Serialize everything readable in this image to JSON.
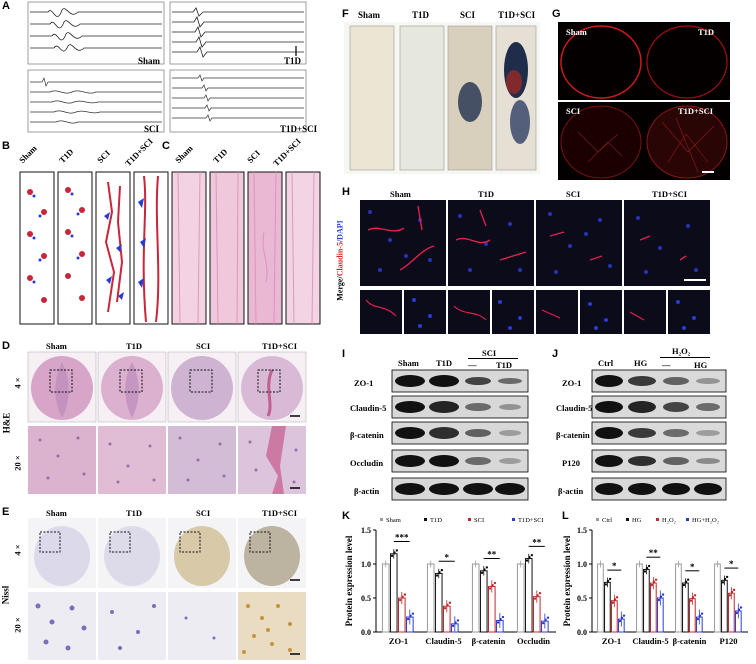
{
  "panels": {
    "A": {
      "letter": "A",
      "tl": "Sham",
      "tr": "T1D",
      "bl": "SCI",
      "br": "T1D+SCI"
    },
    "B": {
      "letter": "B",
      "labels": [
        "Sham",
        "T1D",
        "SCI",
        "T1D+SCI"
      ]
    },
    "C": {
      "letter": "C",
      "labels": [
        "Sham",
        "T1D",
        "SCI",
        "T1D+SCI"
      ]
    },
    "D": {
      "letter": "D",
      "labels": [
        "Sham",
        "T1D",
        "SCI",
        "T1D+SCI"
      ],
      "stain": "H&E",
      "mag4": "4 ×",
      "mag20": "20 ×"
    },
    "E": {
      "letter": "E",
      "labels": [
        "Sham",
        "T1D",
        "SCI",
        "T1D+SCI"
      ],
      "stain": "Nissl",
      "mag4": "4 ×",
      "mag20": "20 ×"
    },
    "F": {
      "letter": "F",
      "labels": [
        "Sham",
        "T1D",
        "SCI",
        "T1D+SCI"
      ]
    },
    "G": {
      "letter": "G",
      "labels": [
        "Sham",
        "T1D",
        "SCI",
        "T1D+SCI"
      ]
    },
    "H": {
      "letter": "H",
      "labels": [
        "Sham",
        "T1D",
        "SCI",
        "T1D+SCI"
      ],
      "ylabel_merge": "Merge/",
      "ylabel_claudin": "Claudin-5",
      "ylabel_dapi": "/DAPI"
    },
    "I": {
      "letter": "I",
      "cols": [
        "Sham",
        "T1D"
      ],
      "group": "SCI",
      "sub": [
        "—",
        "T1D"
      ],
      "rows": [
        "ZO-1",
        "Claudin-5",
        "β-catenin",
        "Occludin",
        "β-actin"
      ]
    },
    "J": {
      "letter": "J",
      "cols": [
        "Ctrl",
        "HG"
      ],
      "group": "H₂O₂",
      "sub": [
        "—",
        "HG"
      ],
      "rows": [
        "ZO-1",
        "Claudin-5",
        "β-catenin",
        "P120",
        "β-actin"
      ]
    }
  },
  "chart_data": [
    {
      "id": "K",
      "type": "bar",
      "letter": "K",
      "ylabel": "Protein expression level",
      "ylim": [
        0,
        1.5
      ],
      "yticks": [
        "0.0",
        "0.5",
        "1.0",
        "1.5"
      ],
      "categories": [
        "ZO-1",
        "Claudin-5",
        "β-catenin",
        "Occludin"
      ],
      "series": [
        {
          "name": "Sham",
          "values": [
            1.0,
            1.0,
            1.0,
            1.0
          ],
          "color": "#9a9a9a"
        },
        {
          "name": "T1D",
          "values": [
            1.15,
            0.86,
            0.9,
            1.08
          ],
          "color": "#111111"
        },
        {
          "name": "SCI",
          "values": [
            0.5,
            0.38,
            0.67,
            0.52
          ],
          "color": "#c0282b"
        },
        {
          "name": "T1D+SCI",
          "values": [
            0.22,
            0.12,
            0.17,
            0.16
          ],
          "color": "#2a3ccf"
        }
      ],
      "significance": [
        {
          "category": 0,
          "text": "***"
        },
        {
          "category": 1,
          "text": "*"
        },
        {
          "category": 2,
          "text": "**"
        },
        {
          "category": 3,
          "text": "**"
        }
      ]
    },
    {
      "id": "L",
      "type": "bar",
      "letter": "L",
      "ylabel": "Protein expression level",
      "ylim": [
        0,
        1.5
      ],
      "yticks": [
        "0.0",
        "0.5",
        "1.0",
        "1.5"
      ],
      "categories": [
        "ZO-1",
        "Claudin-5",
        "β-catenin",
        "P120"
      ],
      "series": [
        {
          "name": "Ctrl",
          "values": [
            1.0,
            1.0,
            1.0,
            1.0
          ],
          "color": "#9a9a9a"
        },
        {
          "name": "HG",
          "values": [
            0.73,
            0.92,
            0.72,
            0.76
          ],
          "color": "#111111"
        },
        {
          "name": "H₂O₂",
          "values": [
            0.46,
            0.72,
            0.49,
            0.57
          ],
          "color": "#c0282b"
        },
        {
          "name": "HG+H₂O₂",
          "values": [
            0.19,
            0.5,
            0.22,
            0.31
          ],
          "color": "#2a3ccf"
        }
      ],
      "significance": [
        {
          "category": 0,
          "text": "*"
        },
        {
          "category": 1,
          "text": "**"
        },
        {
          "category": 2,
          "text": "*"
        },
        {
          "category": 3,
          "text": "*"
        }
      ]
    }
  ]
}
